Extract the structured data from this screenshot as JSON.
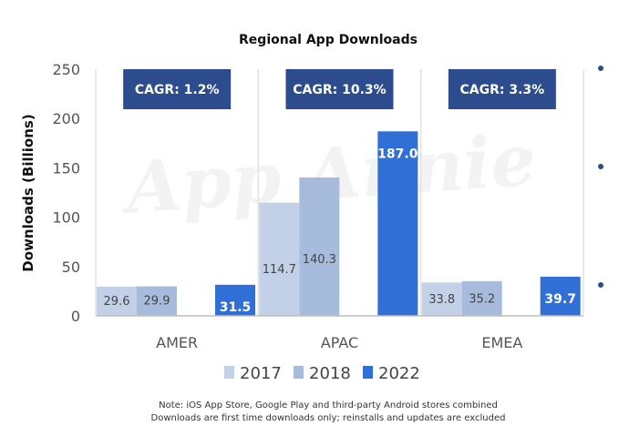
{
  "chart_data": {
    "type": "bar",
    "title": "Regional App Downloads",
    "ylabel": "Downloads (Billions)",
    "xlabel": "",
    "ylim": [
      0,
      250
    ],
    "yticks": [
      0,
      50,
      100,
      150,
      200,
      250
    ],
    "grid": false,
    "legend_position": "bottom",
    "categories": [
      "AMER",
      "APAC",
      "EMEA"
    ],
    "series": [
      {
        "name": "2017",
        "values": [
          29.6,
          114.7,
          33.8
        ],
        "labels": [
          "29.6",
          "114.7",
          "33.8"
        ]
      },
      {
        "name": "2018",
        "values": [
          29.9,
          140.3,
          35.2
        ],
        "labels": [
          "29.9",
          "140.3",
          "35.2"
        ]
      },
      {
        "name": "2022",
        "values": [
          31.5,
          187.0,
          39.7
        ],
        "labels": [
          "31.5",
          "187.0",
          "39.7"
        ]
      }
    ],
    "annotations": [
      "CAGR: 1.2%",
      "CAGR: 10.3%",
      "CAGR: 3.3%"
    ],
    "watermark": "App Annie",
    "notes": [
      "Note: iOS App Store, Google Play and third-party Android stores combined",
      "Downloads are first time downloads only; reinstalls and updates are excluded"
    ]
  },
  "colors": {
    "s2017": "#c3d1e8",
    "s2018": "#a7bcdc",
    "s2022": "#2f6fd6",
    "cagr_box": "#2c4c8e",
    "separator": "#e2e2e2",
    "axis": "#bdbdbd",
    "bullet": "#2c4c8e"
  }
}
